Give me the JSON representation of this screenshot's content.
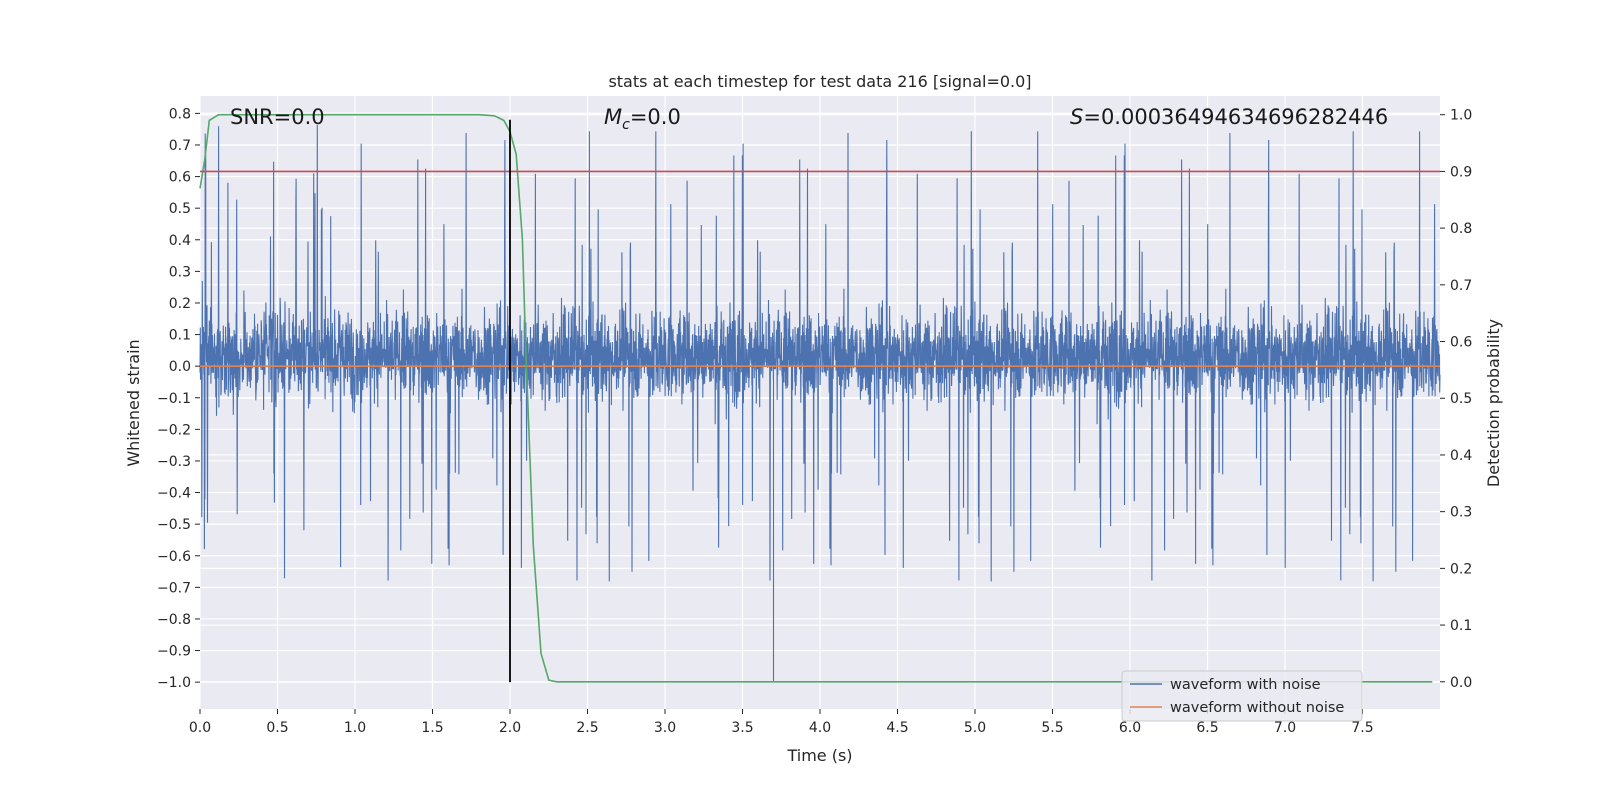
{
  "chart_data": {
    "type": "line",
    "title": "stats at each timestep for test data 216 [signal=0.0]",
    "xlabel": "Time (s)",
    "ylabel_left": "Whitened strain",
    "ylabel_right": "Detection probability",
    "xlim": [
      0.0,
      8.0
    ],
    "ylim_left": [
      -1.085,
      0.855
    ],
    "ylim_right": [
      -0.048,
      1.033
    ],
    "x_ticks": [
      0.0,
      0.5,
      1.0,
      1.5,
      2.0,
      2.5,
      3.0,
      3.5,
      4.0,
      4.5,
      5.0,
      5.5,
      6.0,
      6.5,
      7.0,
      7.5
    ],
    "x_tick_labels": [
      "0.0",
      "0.5",
      "1.0",
      "1.5",
      "2.0",
      "2.5",
      "3.0",
      "3.5",
      "4.0",
      "4.5",
      "5.0",
      "5.5",
      "6.0",
      "6.5",
      "7.0",
      "7.5"
    ],
    "y_left_ticks": [
      0.8,
      0.7,
      0.6,
      0.5,
      0.4,
      0.3,
      0.2,
      0.1,
      0.0,
      -0.1,
      -0.2,
      -0.3,
      -0.4,
      -0.5,
      -0.6,
      -0.7,
      -0.8,
      -0.9,
      -1.0
    ],
    "y_left_tick_labels": [
      "0.8",
      "0.7",
      "0.6",
      "0.5",
      "0.4",
      "0.3",
      "0.2",
      "0.1",
      "0.0",
      "−0.1",
      "−0.2",
      "−0.3",
      "−0.4",
      "−0.5",
      "−0.6",
      "−0.7",
      "−0.8",
      "−0.9",
      "−1.0"
    ],
    "y_right_ticks": [
      1.0,
      0.9,
      0.8,
      0.7,
      0.6,
      0.5,
      0.4,
      0.3,
      0.2,
      0.1,
      0.0
    ],
    "y_right_tick_labels": [
      "1.0",
      "0.9",
      "0.8",
      "0.7",
      "0.6",
      "0.5",
      "0.4",
      "0.3",
      "0.2",
      "0.1",
      "0.0"
    ],
    "annotations": [
      {
        "text": "SNR=0.0",
        "x": 0.2,
        "y": 0.8
      },
      {
        "prefix": "M",
        "subscript": "c",
        "suffix": "=0.0",
        "x": 2.6,
        "y": 0.8
      },
      {
        "prefix": "S",
        "suffix": "=0.0003649463469628244​6",
        "x": 5.6,
        "y": 0.8
      }
    ],
    "series": [
      {
        "name": "waveform with noise",
        "axis": "left",
        "color": "#4c72b0",
        "style": "noise",
        "x_range": [
          0.0,
          8.0
        ],
        "typical_range": [
          -0.29,
          0.36
        ],
        "max": 0.77,
        "min": -1.0
      },
      {
        "name": "waveform without noise",
        "axis": "left",
        "color": "#dd8452",
        "x": [
          0.0,
          8.0
        ],
        "y": [
          0.0,
          0.0
        ]
      },
      {
        "name": "detection probability",
        "axis": "right",
        "color": "#55a868",
        "x": [
          0.0,
          0.03,
          0.06,
          0.12,
          0.2,
          0.5,
          1.0,
          1.5,
          1.8,
          1.9,
          1.96,
          2.0,
          2.04,
          2.08,
          2.1,
          2.15,
          2.2,
          2.25,
          2.3,
          3.0,
          5.0,
          7.5,
          7.95
        ],
        "y": [
          0.87,
          0.92,
          0.99,
          1.0,
          1.0,
          1.0,
          1.0,
          1.0,
          1.0,
          0.998,
          0.99,
          0.97,
          0.93,
          0.78,
          0.6,
          0.24,
          0.05,
          0.003,
          0.0,
          0.0,
          0.0,
          0.0,
          0.0
        ]
      },
      {
        "name": "threshold",
        "axis": "right",
        "color": "#c44e52",
        "x": [
          0.0,
          8.0
        ],
        "y": [
          0.9,
          0.9
        ]
      },
      {
        "name": "marker",
        "axis": "left",
        "color": "#000000",
        "x": [
          2.0,
          2.0
        ],
        "y": [
          -1.0,
          0.78
        ]
      }
    ],
    "legend": {
      "position": "lower-right",
      "entries": [
        "waveform with noise",
        "waveform without noise"
      ]
    },
    "grid": true,
    "colors": {
      "background": "#eaeaf2",
      "grid": "#ffffff",
      "noise": "#4c72b0",
      "clean": "#dd8452",
      "prob": "#55a868",
      "threshold": "#c44e52"
    }
  }
}
